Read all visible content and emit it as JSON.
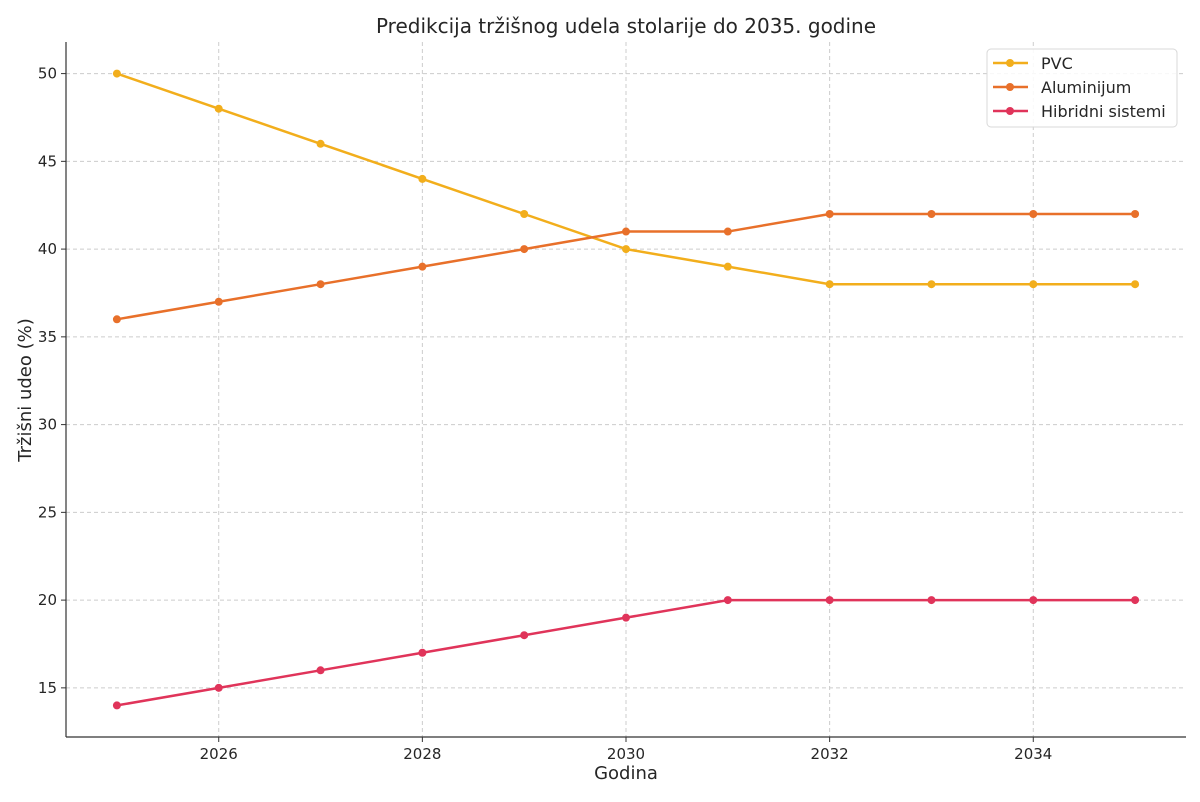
{
  "chart_data": {
    "type": "line",
    "title": "Predikcija tržišnog udela stolarije do 2035. godine",
    "xlabel": "Godina",
    "ylabel": "Tržišni udeo (%)",
    "x": [
      2025,
      2026,
      2027,
      2028,
      2029,
      2030,
      2031,
      2032,
      2033,
      2034,
      2035
    ],
    "xlim": [
      2024.5,
      2035.5
    ],
    "ylim": [
      12.2,
      51.8
    ],
    "xticks": [
      "2026",
      "2028",
      "2030",
      "2032",
      "2034"
    ],
    "yticks": [
      "15",
      "20",
      "25",
      "30",
      "35",
      "40",
      "45",
      "50"
    ],
    "grid": true,
    "legend_position": "top-right",
    "series": [
      {
        "name": "PVC",
        "color": "#f2ae1c",
        "values": [
          50,
          48,
          46,
          44,
          42,
          40,
          39,
          38,
          38,
          38,
          38
        ]
      },
      {
        "name": "Aluminijum",
        "color": "#e8702a",
        "values": [
          36,
          37,
          38,
          39,
          40,
          41,
          41,
          42,
          42,
          42,
          42
        ]
      },
      {
        "name": "Hibridni sistemi",
        "color": "#e0345a",
        "values": [
          14,
          15,
          16,
          17,
          18,
          19,
          20,
          20,
          20,
          20,
          20
        ]
      }
    ]
  }
}
